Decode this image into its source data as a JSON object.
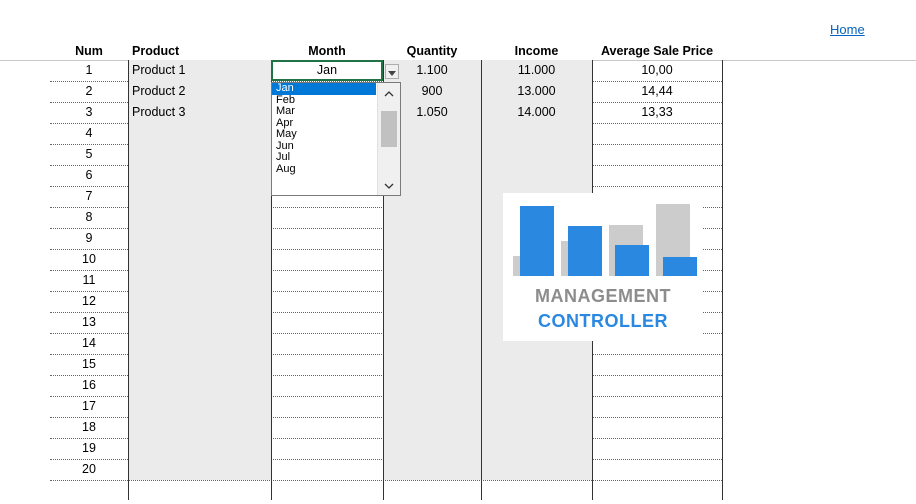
{
  "home_link": "Home",
  "headers": {
    "num": "Num",
    "product": "Product",
    "month": "Month",
    "quantity": "Quantity",
    "income": "Income",
    "avg_price": "Average Sale Price"
  },
  "rows": [
    {
      "num": "1",
      "product": "Product 1",
      "month": "Jan",
      "quantity": "1.100",
      "income": "11.000",
      "avg": "10,00"
    },
    {
      "num": "2",
      "product": "Product 2",
      "month": "",
      "quantity": "900",
      "income": "13.000",
      "avg": "14,44"
    },
    {
      "num": "3",
      "product": "Product 3",
      "month": "",
      "quantity": "1.050",
      "income": "14.000",
      "avg": "13,33"
    },
    {
      "num": "4",
      "product": "",
      "month": "",
      "quantity": "",
      "income": "",
      "avg": ""
    },
    {
      "num": "5",
      "product": "",
      "month": "",
      "quantity": "",
      "income": "",
      "avg": ""
    },
    {
      "num": "6",
      "product": "",
      "month": "",
      "quantity": "",
      "income": "",
      "avg": ""
    },
    {
      "num": "7",
      "product": "",
      "month": "",
      "quantity": "",
      "income": "",
      "avg": ""
    },
    {
      "num": "8",
      "product": "",
      "month": "",
      "quantity": "",
      "income": "",
      "avg": ""
    },
    {
      "num": "9",
      "product": "",
      "month": "",
      "quantity": "",
      "income": "",
      "avg": ""
    },
    {
      "num": "10",
      "product": "",
      "month": "",
      "quantity": "",
      "income": "",
      "avg": ""
    },
    {
      "num": "11",
      "product": "",
      "month": "",
      "quantity": "",
      "income": "",
      "avg": ""
    },
    {
      "num": "12",
      "product": "",
      "month": "",
      "quantity": "",
      "income": "",
      "avg": ""
    },
    {
      "num": "13",
      "product": "",
      "month": "",
      "quantity": "",
      "income": "",
      "avg": ""
    },
    {
      "num": "14",
      "product": "",
      "month": "",
      "quantity": "",
      "income": "",
      "avg": ""
    },
    {
      "num": "15",
      "product": "",
      "month": "",
      "quantity": "",
      "income": "",
      "avg": ""
    },
    {
      "num": "16",
      "product": "",
      "month": "",
      "quantity": "",
      "income": "",
      "avg": ""
    },
    {
      "num": "17",
      "product": "",
      "month": "",
      "quantity": "",
      "income": "",
      "avg": ""
    },
    {
      "num": "18",
      "product": "",
      "month": "",
      "quantity": "",
      "income": "",
      "avg": ""
    },
    {
      "num": "19",
      "product": "",
      "month": "",
      "quantity": "",
      "income": "",
      "avg": ""
    },
    {
      "num": "20",
      "product": "",
      "month": "",
      "quantity": "",
      "income": "",
      "avg": ""
    }
  ],
  "dropdown": {
    "selected": "Jan",
    "options": [
      "Jan",
      "Feb",
      "Mar",
      "Apr",
      "May",
      "Jun",
      "Jul",
      "Aug"
    ],
    "selected_color": "#0078d7"
  },
  "logo": {
    "line1": "MANAGEMENT",
    "line2": "CONTROLLER",
    "gray": "#cccccc",
    "blue": "#2b88e0"
  },
  "colors": {
    "link": "#0563c1",
    "input_fill": "#ebebeb",
    "active_border": "#217346"
  }
}
